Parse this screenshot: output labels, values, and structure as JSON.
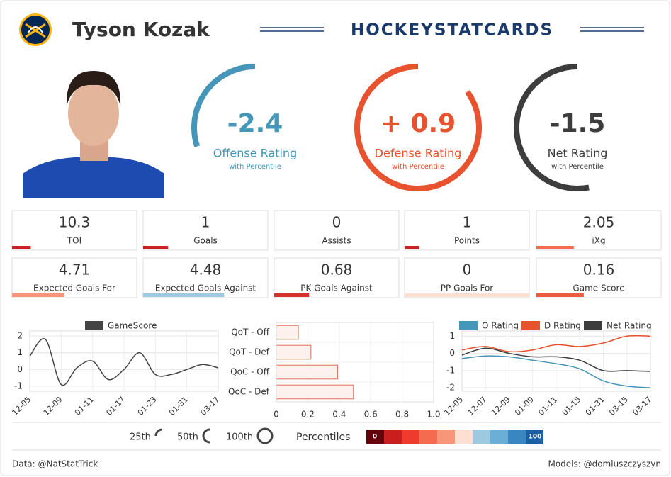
{
  "header": {
    "name": "Tyson Kozak",
    "brand": "HOCKEYSTATCARDS"
  },
  "ratings": [
    {
      "value": -2.4,
      "label": "-2.4",
      "title": "Offense Rating",
      "subtitle": "with Percentile",
      "percentile": 30,
      "color": "#4596b9"
    },
    {
      "value": 0.9,
      "label": "+ 0.9",
      "title": "Defense Rating",
      "subtitle": "with Percentile",
      "percentile": 85,
      "color": "#e8532f"
    },
    {
      "value": -1.5,
      "label": "-1.5",
      "title": "Net Rating",
      "subtitle": "with Percentile",
      "percentile": 53,
      "color": "#3d3d3d"
    }
  ],
  "stats": [
    {
      "label": "TOI",
      "value": 10.3,
      "percentile": 15,
      "color": "#c9201f"
    },
    {
      "label": "Goals",
      "value": 1,
      "percentile": 20,
      "color": "#c9201f"
    },
    {
      "label": "Assists",
      "value": 0,
      "percentile": 0,
      "color": "#67000d"
    },
    {
      "label": "Points",
      "value": 1,
      "percentile": 12,
      "color": "#c9201f"
    },
    {
      "label": "iXg",
      "value": 2.05,
      "percentile": 30,
      "color": "#f56b4f"
    },
    {
      "label": "Expected Goals For",
      "value": 4.71,
      "percentile": 42,
      "color": "#f8967a"
    },
    {
      "label": "Expected Goals Against",
      "value": 4.48,
      "percentile": 65,
      "color": "#9ecae1"
    },
    {
      "label": "PK Goals Against",
      "value": 0.68,
      "percentile": 28,
      "color": "#d9302a"
    },
    {
      "label": "PP Goals For",
      "value": 0,
      "percentile": 100,
      "color": "#fde0d2"
    },
    {
      "label": "Game Score",
      "value": 0.16,
      "percentile": 38,
      "color": "#ee5a40"
    }
  ],
  "chart_data": [
    {
      "type": "line",
      "categories": [
        "12-05",
        null,
        "12-09",
        null,
        "01-11",
        null,
        "01-17",
        null,
        "01-23",
        null,
        "01-31",
        null,
        "03-17"
      ],
      "series": [
        {
          "name": "GameScore",
          "color": "#444444",
          "values": [
            0.8,
            1.8,
            -0.9,
            0.1,
            0.5,
            -0.6,
            0.0,
            1.0,
            -0.3,
            -0.3,
            0.0,
            0.3,
            0.1
          ]
        }
      ],
      "ylim": [
        -1.3,
        2.3
      ],
      "yticks": [
        -1,
        0,
        1,
        2
      ],
      "grid": true
    },
    {
      "type": "bar",
      "orientation": "horizontal",
      "categories": [
        "QoT - Off",
        "QoT - Def",
        "QoC - Off",
        "QoC - Def"
      ],
      "values": [
        0.14,
        0.22,
        0.39,
        0.49
      ],
      "color": "#e0705a",
      "xlim": [
        0,
        1
      ],
      "xticks": [
        0,
        0.2,
        0.4,
        0.6,
        0.8,
        {
          "value": 1,
          "label": "1.0"
        }
      ],
      "grid": true
    },
    {
      "type": "line",
      "categories": [
        "12-05",
        "12-07",
        "12-09",
        "01-09",
        "01-11",
        "01-15",
        "01-31",
        "03-15",
        "03-17"
      ],
      "series": [
        {
          "name": "O Rating",
          "color": "#4596b9",
          "values": [
            -0.3,
            -0.15,
            -0.2,
            -0.4,
            -0.6,
            -0.9,
            -1.6,
            -1.9,
            -2.0
          ]
        },
        {
          "name": "D Rating",
          "color": "#e8532f",
          "values": [
            0.2,
            0.4,
            0.1,
            0.2,
            0.5,
            0.4,
            0.6,
            1.0,
            1.0
          ]
        },
        {
          "name": "Net Rating",
          "color": "#3d3d3d",
          "values": [
            -0.1,
            0.3,
            0.0,
            -0.2,
            -0.2,
            -0.4,
            -1.0,
            -1.0,
            -1.05
          ]
        }
      ],
      "ylim": [
        -2.2,
        1.3
      ],
      "yticks": [
        -2,
        -1,
        0,
        1
      ],
      "grid": true
    }
  ],
  "legend": {
    "rings": [
      "25th",
      "50th",
      "100th"
    ],
    "title": "Percentiles",
    "colors": [
      "#67000d",
      "#c9201f",
      "#ee3b2d",
      "#f56b4f",
      "#f8967a",
      "#fde0d2",
      "#9ecae1",
      "#6baed6",
      "#3a86c2",
      "#1b5fa8"
    ],
    "min": 0,
    "max": 100
  },
  "footer": {
    "left": "Data: @NatStatTrick",
    "right": "Models: @domluszczyszyn"
  }
}
